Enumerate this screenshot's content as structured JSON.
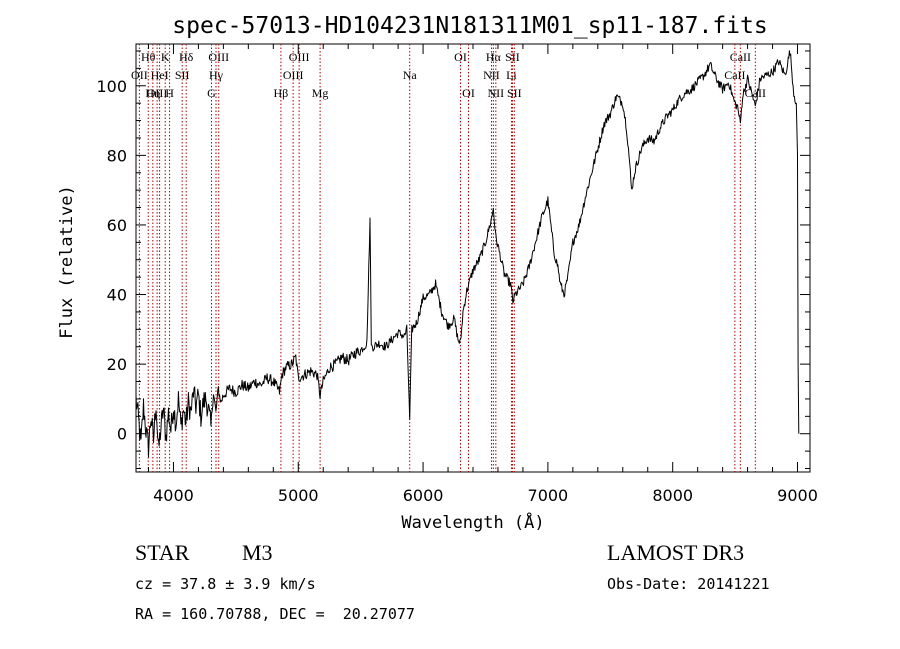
{
  "chart_data": {
    "type": "line",
    "title": "spec-57013-HD104231N181311M01_sp11-187.fits",
    "xlabel": "Wavelength (Å)",
    "ylabel": "Flux (relative)",
    "xlim": [
      3700,
      9100
    ],
    "ylim": [
      -11,
      112
    ],
    "xticks": [
      4000,
      5000,
      6000,
      7000,
      8000,
      9000
    ],
    "xtick_labels": [
      "4000",
      "5000",
      "6000",
      "7000",
      "8000",
      "9000"
    ],
    "yticks": [
      0,
      20,
      40,
      60,
      80,
      100
    ],
    "ytick_labels": [
      "0",
      "20",
      "40",
      "60",
      "80",
      "100"
    ],
    "grid": false,
    "series": [
      {
        "name": "spectrum",
        "points": [
          [
            3700,
            10
          ],
          [
            3720,
            4
          ],
          [
            3740,
            -3
          ],
          [
            3760,
            8
          ],
          [
            3780,
            1
          ],
          [
            3800,
            -4
          ],
          [
            3820,
            5
          ],
          [
            3840,
            -2
          ],
          [
            3860,
            9
          ],
          [
            3880,
            -5
          ],
          [
            3900,
            2
          ],
          [
            3920,
            7
          ],
          [
            3940,
            -1
          ],
          [
            3960,
            6
          ],
          [
            3980,
            1
          ],
          [
            4000,
            8
          ],
          [
            4020,
            3
          ],
          [
            4040,
            10
          ],
          [
            4060,
            2
          ],
          [
            4080,
            7
          ],
          [
            4100,
            3
          ],
          [
            4120,
            9
          ],
          [
            4140,
            6
          ],
          [
            4160,
            12
          ],
          [
            4180,
            8
          ],
          [
            4200,
            11
          ],
          [
            4220,
            5
          ],
          [
            4240,
            9
          ],
          [
            4260,
            10
          ],
          [
            4280,
            7
          ],
          [
            4300,
            2
          ],
          [
            4320,
            12
          ],
          [
            4340,
            6
          ],
          [
            4360,
            13
          ],
          [
            4380,
            9
          ],
          [
            4400,
            11
          ],
          [
            4450,
            13
          ],
          [
            4500,
            12
          ],
          [
            4550,
            14
          ],
          [
            4600,
            13
          ],
          [
            4650,
            15
          ],
          [
            4700,
            14
          ],
          [
            4750,
            16
          ],
          [
            4800,
            15
          ],
          [
            4850,
            12
          ],
          [
            4870,
            17
          ],
          [
            4900,
            19
          ],
          [
            4950,
            20
          ],
          [
            4980,
            22
          ],
          [
            5000,
            16
          ],
          [
            5050,
            17
          ],
          [
            5100,
            18
          ],
          [
            5150,
            17
          ],
          [
            5175,
            11
          ],
          [
            5200,
            15
          ],
          [
            5250,
            19
          ],
          [
            5300,
            20
          ],
          [
            5350,
            22
          ],
          [
            5400,
            21
          ],
          [
            5450,
            23
          ],
          [
            5500,
            24
          ],
          [
            5550,
            26
          ],
          [
            5575,
            62
          ],
          [
            5585,
            25
          ],
          [
            5600,
            25
          ],
          [
            5650,
            26
          ],
          [
            5700,
            25
          ],
          [
            5750,
            27
          ],
          [
            5800,
            29
          ],
          [
            5850,
            28
          ],
          [
            5870,
            30
          ],
          [
            5893,
            4
          ],
          [
            5910,
            30
          ],
          [
            5950,
            32
          ],
          [
            6000,
            39
          ],
          [
            6050,
            40
          ],
          [
            6100,
            43
          ],
          [
            6150,
            35
          ],
          [
            6200,
            31
          ],
          [
            6250,
            33
          ],
          [
            6280,
            27
          ],
          [
            6300,
            26
          ],
          [
            6320,
            35
          ],
          [
            6350,
            41
          ],
          [
            6400,
            47
          ],
          [
            6450,
            50
          ],
          [
            6500,
            55
          ],
          [
            6550,
            62
          ],
          [
            6563,
            65
          ],
          [
            6580,
            57
          ],
          [
            6600,
            54
          ],
          [
            6650,
            46
          ],
          [
            6700,
            43
          ],
          [
            6720,
            38
          ],
          [
            6740,
            40
          ],
          [
            6800,
            43
          ],
          [
            6850,
            48
          ],
          [
            6900,
            55
          ],
          [
            6950,
            62
          ],
          [
            7000,
            67
          ],
          [
            7050,
            52
          ],
          [
            7080,
            48
          ],
          [
            7100,
            43
          ],
          [
            7130,
            40
          ],
          [
            7160,
            45
          ],
          [
            7200,
            55
          ],
          [
            7250,
            60
          ],
          [
            7300,
            68
          ],
          [
            7350,
            75
          ],
          [
            7400,
            82
          ],
          [
            7450,
            89
          ],
          [
            7500,
            92
          ],
          [
            7550,
            97
          ],
          [
            7600,
            95
          ],
          [
            7630,
            88
          ],
          [
            7650,
            80
          ],
          [
            7670,
            70
          ],
          [
            7700,
            76
          ],
          [
            7750,
            82
          ],
          [
            7800,
            85
          ],
          [
            7850,
            84
          ],
          [
            7900,
            88
          ],
          [
            7950,
            91
          ],
          [
            8000,
            93
          ],
          [
            8050,
            96
          ],
          [
            8100,
            98
          ],
          [
            8150,
            99
          ],
          [
            8200,
            101
          ],
          [
            8250,
            103
          ],
          [
            8300,
            106
          ],
          [
            8350,
            102
          ],
          [
            8400,
            99
          ],
          [
            8450,
            101
          ],
          [
            8480,
            97
          ],
          [
            8498,
            95
          ],
          [
            8520,
            94
          ],
          [
            8542,
            89
          ],
          [
            8560,
            97
          ],
          [
            8600,
            102
          ],
          [
            8640,
            97
          ],
          [
            8662,
            94
          ],
          [
            8700,
            102
          ],
          [
            8750,
            103
          ],
          [
            8800,
            104
          ],
          [
            8850,
            107
          ],
          [
            8900,
            103
          ],
          [
            8940,
            110
          ],
          [
            8970,
            98
          ],
          [
            8990,
            95
          ],
          [
            9000,
            80
          ],
          [
            9005,
            20
          ],
          [
            9010,
            0
          ]
        ]
      }
    ],
    "line_markers": [
      {
        "label": "Hθ",
        "x": 3798,
        "row": 1
      },
      {
        "label": "OII",
        "x": 3727,
        "row": 2
      },
      {
        "label": "OIII",
        "x": 3869,
        "row": 3
      },
      {
        "label": "K",
        "x": 3934,
        "row": 1
      },
      {
        "label": "HeI",
        "x": 3889,
        "row": 2
      },
      {
        "label": "Hη",
        "x": 3835,
        "row": 3
      },
      {
        "label": "SII",
        "x": 4070,
        "row": 2
      },
      {
        "label": "H",
        "x": 3969,
        "row": 3
      },
      {
        "label": "Hδ",
        "x": 4102,
        "row": 1
      },
      {
        "label": "OIII",
        "x": 4363,
        "row": 1
      },
      {
        "label": "Hγ",
        "x": 4341,
        "row": 2
      },
      {
        "label": "G",
        "x": 4305,
        "row": 3
      },
      {
        "label": "Hβ",
        "x": 4861,
        "row": 3
      },
      {
        "label": "OIII",
        "x": 5007,
        "row": 1
      },
      {
        "label": "OIII",
        "x": 4959,
        "row": 2
      },
      {
        "label": "Mg",
        "x": 5175,
        "row": 3
      },
      {
        "label": "Na",
        "x": 5893,
        "row": 2
      },
      {
        "label": "OI",
        "x": 6300,
        "row": 1
      },
      {
        "label": "OI",
        "x": 6364,
        "row": 3
      },
      {
        "label": "Hα",
        "x": 6563,
        "row": 1
      },
      {
        "label": "NII",
        "x": 6548,
        "row": 2
      },
      {
        "label": "NII",
        "x": 6583,
        "row": 3
      },
      {
        "label": "SII",
        "x": 6716,
        "row": 1
      },
      {
        "label": "Li",
        "x": 6708,
        "row": 2
      },
      {
        "label": "SII",
        "x": 6731,
        "row": 3
      },
      {
        "label": "CaII",
        "x": 8542,
        "row": 1
      },
      {
        "label": "CaII",
        "x": 8498,
        "row": 2
      },
      {
        "label": "CaII",
        "x": 8662,
        "row": 3
      }
    ],
    "colors": {
      "spectrum": "#000000",
      "markers": "#b00000"
    }
  },
  "info": {
    "class": "STAR",
    "subclass": "M3",
    "survey": "LAMOST DR3",
    "redshift": "cz = 37.8 ± 3.9 km/s",
    "obs_date": "Obs-Date: 20141221",
    "coords": "RA = 160.70788, DEC =  20.27077"
  }
}
